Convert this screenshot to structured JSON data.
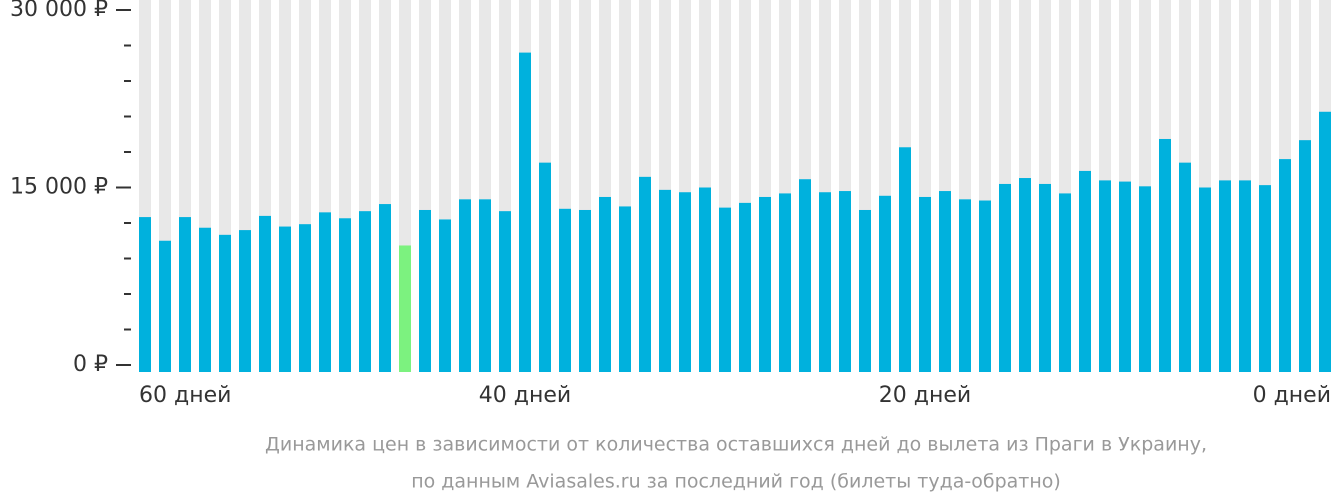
{
  "chart_data": {
    "type": "bar",
    "categories": [
      "60 дней",
      null,
      null,
      null,
      null,
      null,
      null,
      null,
      null,
      null,
      null,
      null,
      null,
      null,
      null,
      null,
      null,
      null,
      null,
      "40 дней",
      null,
      null,
      null,
      null,
      null,
      null,
      null,
      null,
      null,
      null,
      null,
      null,
      null,
      null,
      null,
      null,
      null,
      null,
      null,
      "20 дней",
      null,
      null,
      null,
      null,
      null,
      null,
      null,
      null,
      null,
      null,
      null,
      null,
      null,
      null,
      null,
      null,
      null,
      null,
      null,
      "0 дней"
    ],
    "values": [
      12500,
      10500,
      12500,
      11600,
      11000,
      11400,
      12600,
      11700,
      11900,
      12900,
      12400,
      13000,
      13600,
      10100,
      13100,
      12300,
      14000,
      14000,
      13000,
      26400,
      17100,
      13200,
      13100,
      14200,
      13400,
      15900,
      14800,
      14600,
      15000,
      13300,
      13700,
      14200,
      14500,
      15700,
      14600,
      14700,
      13100,
      14300,
      18400,
      14200,
      14700,
      14000,
      13900,
      15300,
      15800,
      15300,
      14500,
      16400,
      15600,
      15500,
      15100,
      19100,
      17100,
      15000,
      15600,
      15600,
      15200,
      17400,
      19000,
      21400
    ],
    "color": "#00b1dd",
    "highlight_index": 13,
    "highlight_color": "#7cf27f",
    "background_color": "#e8e8e8",
    "ylim": [
      0,
      30000
    ],
    "yticks": [
      {
        "value": 0,
        "label": "0 ₽"
      },
      {
        "value": 15000,
        "label": "15 000 ₽"
      },
      {
        "value": 30000,
        "label": "30 000 ₽"
      }
    ],
    "yminorticks": [
      3000,
      6000,
      9000,
      12000,
      18000,
      21000,
      24000,
      27000
    ],
    "caption": [
      "Динамика цен в зависимости от количества оставшихся дней до вылета из Праги в Украину,",
      "по данным Aviasales.ru за последний год (билеты туда-обратно)"
    ]
  }
}
